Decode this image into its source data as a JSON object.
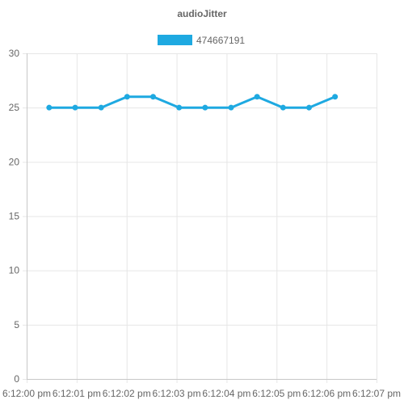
{
  "chart_data": {
    "type": "line",
    "title": "audioJitter",
    "legend_position": "top",
    "grid": true,
    "xlabel": "",
    "ylabel": "",
    "ylim": [
      0,
      30
    ],
    "y_ticks": [
      0,
      5,
      10,
      15,
      20,
      25,
      30
    ],
    "x_ticks": [
      "6:12:00 pm",
      "6:12:01 pm",
      "6:12:02 pm",
      "6:12:03 pm",
      "6:12:04 pm",
      "6:12:05 pm",
      "6:12:06 pm",
      "6:12:07 pm"
    ],
    "xlim": [
      0,
      7
    ],
    "series": [
      {
        "name": "474667191",
        "color": "#1ea9e1",
        "x": [
          0.45,
          0.97,
          1.49,
          2.01,
          2.53,
          3.05,
          3.57,
          4.09,
          4.61,
          5.13,
          5.65,
          6.17
        ],
        "values": [
          25,
          25,
          25,
          26,
          26,
          25,
          25,
          25,
          26,
          25,
          25,
          26
        ]
      }
    ]
  }
}
